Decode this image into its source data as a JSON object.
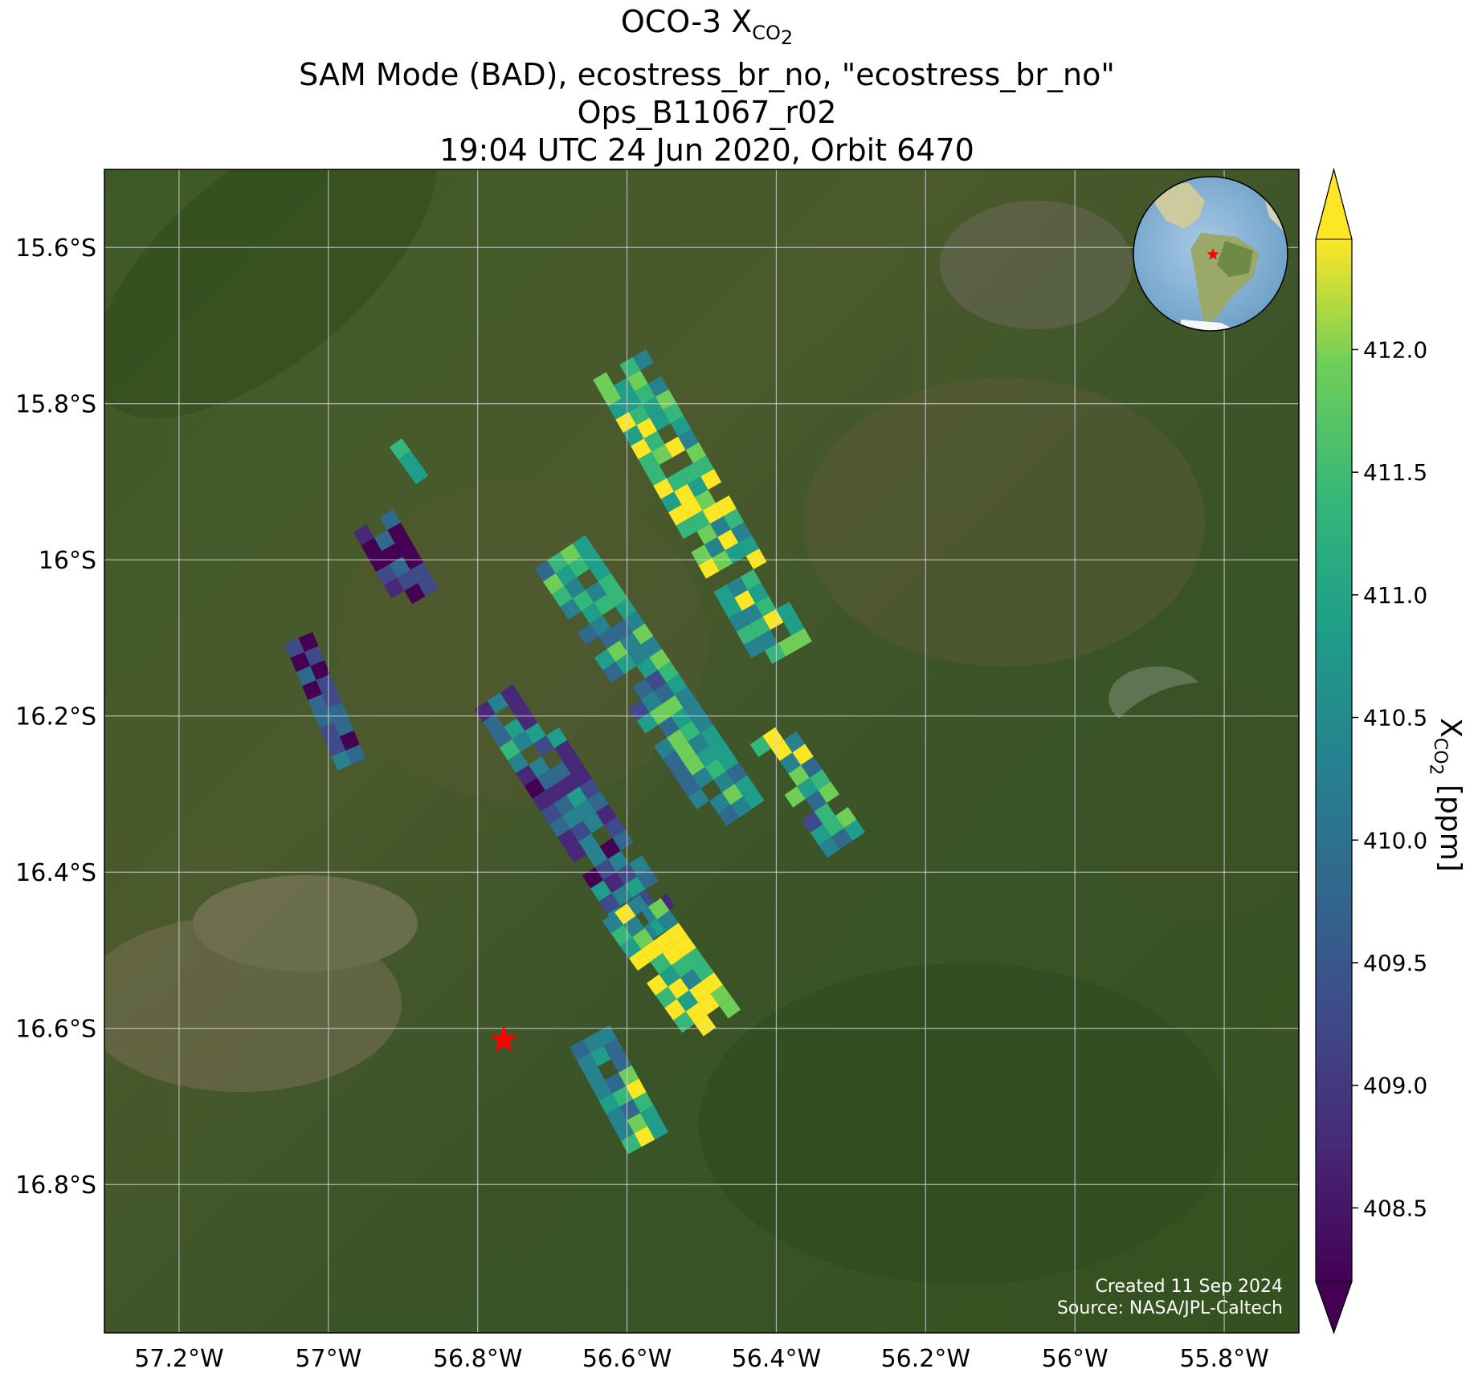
{
  "title": {
    "line1_main": "OCO-3 X",
    "line1_sub": "CO",
    "line1_subsub": "2",
    "line2": "SAM Mode (BAD), ecostress_br_no, \"ecostress_br_no\"",
    "line3": "Ops_B11067_r02",
    "line4": "19:04 UTC 24 Jun 2020, Orbit 6470"
  },
  "map": {
    "lon_range": [
      -57.3,
      -55.7
    ],
    "lat_range": [
      -16.99,
      -15.5
    ],
    "lon_ticks": [
      {
        "value": -57.2,
        "label": "57.2°W"
      },
      {
        "value": -57.0,
        "label": "57°W"
      },
      {
        "value": -56.8,
        "label": "56.8°W"
      },
      {
        "value": -56.6,
        "label": "56.6°W"
      },
      {
        "value": -56.4,
        "label": "56.4°W"
      },
      {
        "value": -56.2,
        "label": "56.2°W"
      },
      {
        "value": -56.0,
        "label": "56°W"
      },
      {
        "value": -55.8,
        "label": "55.8°W"
      }
    ],
    "lat_ticks": [
      {
        "value": -15.6,
        "label": "15.6°S"
      },
      {
        "value": -15.8,
        "label": "15.8°S"
      },
      {
        "value": -16.0,
        "label": "16°S"
      },
      {
        "value": -16.2,
        "label": "16.2°S"
      },
      {
        "value": -16.4,
        "label": "16.4°S"
      },
      {
        "value": -16.6,
        "label": "16.6°S"
      },
      {
        "value": -16.8,
        "label": "16.8°S"
      }
    ],
    "grid": true,
    "basemap": "satellite imagery",
    "target_marker": {
      "lon": -56.765,
      "lat": -16.615,
      "symbol": "star",
      "color": "#ff0000"
    },
    "inset_globe": {
      "position": "top-right",
      "marker": "star",
      "marker_color": "#ff0000"
    }
  },
  "colorbar": {
    "label_main": "X",
    "label_sub": "CO",
    "label_subsub": "2",
    "label_unit": " [ppm]",
    "range": [
      408.2,
      412.45
    ],
    "ticks": [
      {
        "value": 408.5,
        "label": "408.5"
      },
      {
        "value": 409.0,
        "label": "409.0"
      },
      {
        "value": 409.5,
        "label": "409.5"
      },
      {
        "value": 410.0,
        "label": "410.0"
      },
      {
        "value": 410.5,
        "label": "410.5"
      },
      {
        "value": 411.0,
        "label": "411.0"
      },
      {
        "value": 411.5,
        "label": "411.5"
      },
      {
        "value": 412.0,
        "label": "412.0"
      }
    ],
    "colormap": "viridis",
    "extend": "both"
  },
  "credit": {
    "created": "Created 11 Sep 2024",
    "source": "Source: NASA/JPL-Caltech"
  },
  "chart_data": {
    "type": "heatmap",
    "xlabel": "",
    "ylabel": "",
    "swaths": [
      {
        "lon_start": -56.61,
        "lat_start": -15.75,
        "lon_end": -56.39,
        "lat_end": -16.12,
        "width": 0.085,
        "mean": 411.5
      },
      {
        "lon_start": -56.69,
        "lat_start": -15.99,
        "lon_end": -56.45,
        "lat_end": -16.33,
        "width": 0.09,
        "mean": 410.7
      },
      {
        "lon_start": -56.77,
        "lat_start": -16.17,
        "lon_end": -56.56,
        "lat_end": -16.48,
        "width": 0.085,
        "mean": 409.8
      },
      {
        "lon_start": -56.6,
        "lat_start": -16.44,
        "lon_end": -56.48,
        "lat_end": -16.6,
        "width": 0.08,
        "mean": 411.7
      },
      {
        "lon_start": -56.65,
        "lat_start": -16.61,
        "lon_end": -56.57,
        "lat_end": -16.75,
        "width": 0.07,
        "mean": 411.0
      },
      {
        "lon_start": -56.41,
        "lat_start": -16.22,
        "lon_end": -56.31,
        "lat_end": -16.36,
        "width": 0.06,
        "mean": 410.9
      },
      {
        "lon_start": -56.94,
        "lat_start": -15.95,
        "lon_end": -56.88,
        "lat_end": -16.05,
        "width": 0.06,
        "mean": 408.9
      },
      {
        "lon_start": -57.04,
        "lat_start": -16.1,
        "lon_end": -56.97,
        "lat_end": -16.26,
        "width": 0.05,
        "mean": 409.0
      },
      {
        "lon_start": -56.91,
        "lat_start": -15.85,
        "lon_end": -56.88,
        "lat_end": -15.89,
        "width": 0.03,
        "mean": 410.8
      }
    ],
    "value_range": [
      408.2,
      412.45
    ]
  }
}
